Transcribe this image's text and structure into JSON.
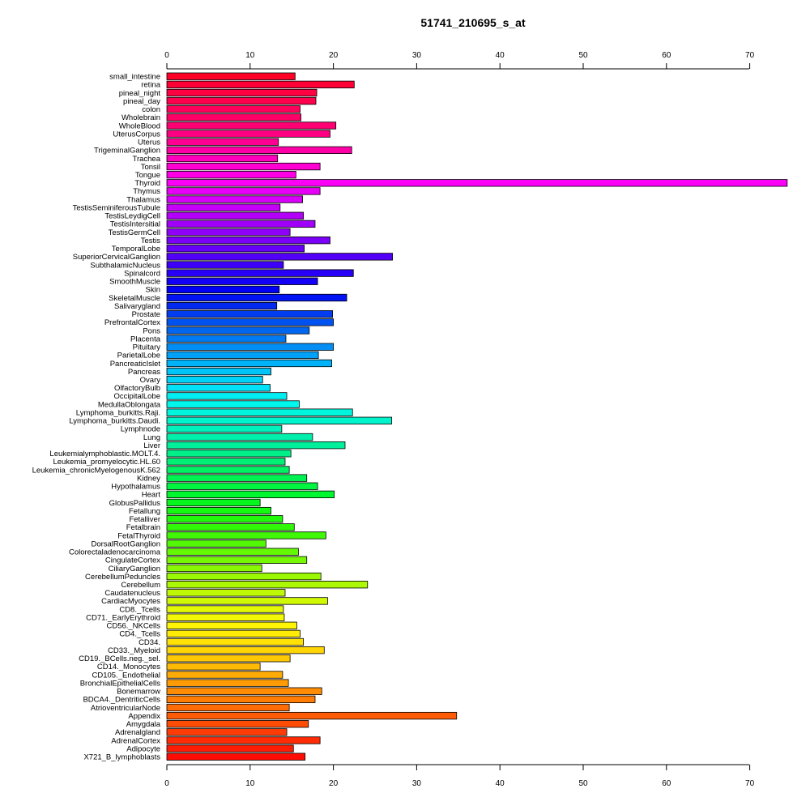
{
  "chart_data": {
    "type": "bar",
    "orientation": "horizontal",
    "title": "51741_210695_s_at",
    "xlim": [
      0,
      74.5
    ],
    "xticks": [
      0,
      10,
      20,
      30,
      40,
      50,
      60,
      70
    ],
    "xtick_labels": [
      "0",
      "10",
      "20",
      "30",
      "40",
      "50",
      "60",
      "70"
    ],
    "axes": [
      "top",
      "bottom"
    ],
    "grid": false,
    "categories": [
      "small_intestine",
      "retina",
      "pineal_night",
      "pineal_day",
      "colon",
      "Wholebrain",
      "WholeBlood",
      "UterusCorpus",
      "Uterus",
      "TrigeminalGanglion",
      "Trachea",
      "Tonsil",
      "Tongue",
      "Thyroid",
      "Thymus",
      "Thalamus",
      "TestisSeminiferousTubule",
      "TestisLeydigCell",
      "TestisIntersitial",
      "TestisGermCell",
      "Testis",
      "TemporalLobe",
      "SuperiorCervicalGanglion",
      "SubthalamicNucleus",
      "Spinalcord",
      "SmoothMuscle",
      "Skin",
      "SkeletalMuscle",
      "Salivarygland",
      "Prostate",
      "PrefrontalCortex",
      "Pons",
      "Placenta",
      "Pituitary",
      "ParietalLobe",
      "PancreaticIslet",
      "Pancreas",
      "Ovary",
      "OlfactoryBulb",
      "OccipitalLobe",
      "MedullaOblongata",
      "Lymphoma_burkitts.Raji.",
      "Lymphoma_burkitts.Daudi.",
      "Lymphnode",
      "Lung",
      "Liver",
      "Leukemialymphoblastic.MOLT.4.",
      "Leukemia_promyelocytic.HL.60",
      "Leukemia_chronicMyelogenousK.562",
      "Kidney",
      "Hypothalamus",
      "Heart",
      "GlobusPallidus",
      "Fetallung",
      "Fetalliver",
      "Fetalbrain",
      "FetalThyroid",
      "DorsalRootGanglion",
      "Colorectaladenocarcinoma",
      "CingulateCortex",
      "CiliaryGanglion",
      "CerebellumPeduncles",
      "Cerebellum",
      "Caudatenucleus",
      "CardiacMyocytes",
      "CD8._Tcells",
      "CD71._EarlyErythroid",
      "CD56._NKCells",
      "CD4._Tcells",
      "CD34.",
      "CD33._Myeloid",
      "CD19._BCells.neg._sel.",
      "CD14._Monocytes",
      "CD105._Endothelial",
      "BronchialEpithelialCells",
      "Bonemarrow",
      "BDCA4._DentriticCells",
      "AtrioventricularNode",
      "Appendix",
      "Amygdala",
      "Adrenalgland",
      "AdrenalCortex",
      "Adipocyte",
      "X721_B_lymphoblasts"
    ],
    "values": [
      15.4,
      22.5,
      18.0,
      17.9,
      16.0,
      16.1,
      20.3,
      19.6,
      13.4,
      22.2,
      13.3,
      18.4,
      15.5,
      74.5,
      18.4,
      16.3,
      13.6,
      16.4,
      17.8,
      14.8,
      19.6,
      16.5,
      27.1,
      14.0,
      22.4,
      18.1,
      13.5,
      21.6,
      13.2,
      19.9,
      20.0,
      17.1,
      14.3,
      20.0,
      18.2,
      19.8,
      12.5,
      11.5,
      12.4,
      14.4,
      15.9,
      22.3,
      27.0,
      13.8,
      17.5,
      21.4,
      14.9,
      14.2,
      14.7,
      16.8,
      18.1,
      20.1,
      11.2,
      12.5,
      13.9,
      15.3,
      19.1,
      11.9,
      15.8,
      16.8,
      11.4,
      18.5,
      24.1,
      14.2,
      19.3,
      14.0,
      14.1,
      15.6,
      16.0,
      16.4,
      18.9,
      14.8,
      11.2,
      13.9,
      14.6,
      18.6,
      17.8,
      14.7,
      34.8,
      17.0,
      14.4,
      18.4,
      15.2,
      16.6
    ],
    "colors": [
      "#ff0027",
      "#ff0037",
      "#ff0042",
      "#ff004e",
      "#ff005a",
      "#ff0066",
      "#ff0073",
      "#ff0082",
      "#ff0093",
      "#ff00a7",
      "#ff00bd",
      "#ff00d3",
      "#ff00e6",
      "#fa00f7",
      "#e900f8",
      "#d700f8",
      "#c500f8",
      "#b300f8",
      "#a100f8",
      "#8e00f8",
      "#7a00f8",
      "#6600f8",
      "#5200f8",
      "#3d00f8",
      "#2800f7",
      "#1300f7",
      "#0000f4",
      "#0013f2",
      "#0028ef",
      "#003df0",
      "#0052f0",
      "#0066f0",
      "#007af2",
      "#008ef4",
      "#00a1f6",
      "#00b3f8",
      "#00c3f8",
      "#00d2f8",
      "#00e0f6",
      "#00eef2",
      "#00f8ec",
      "#00f6dc",
      "#00f4cc",
      "#00f2bc",
      "#00f0ac",
      "#00ef9a",
      "#00ef88",
      "#00f076",
      "#00f164",
      "#00f252",
      "#00f440",
      "#00f62e",
      "#06f71e",
      "#14f812",
      "#22f80a",
      "#30f806",
      "#40f805",
      "#52f805",
      "#64f805",
      "#76f805",
      "#88f805",
      "#9af805",
      "#acf805",
      "#bef805",
      "#d0f805",
      "#e2f805",
      "#f2f805",
      "#fff505",
      "#ffeb05",
      "#ffe105",
      "#ffd505",
      "#ffc805",
      "#ffba05",
      "#ffab05",
      "#ff9c05",
      "#ff8c05",
      "#ff7c05",
      "#ff6c05",
      "#ff5c05",
      "#ff4c05",
      "#ff3c05",
      "#ff2c05",
      "#ff1c05",
      "#ff0c05"
    ]
  }
}
